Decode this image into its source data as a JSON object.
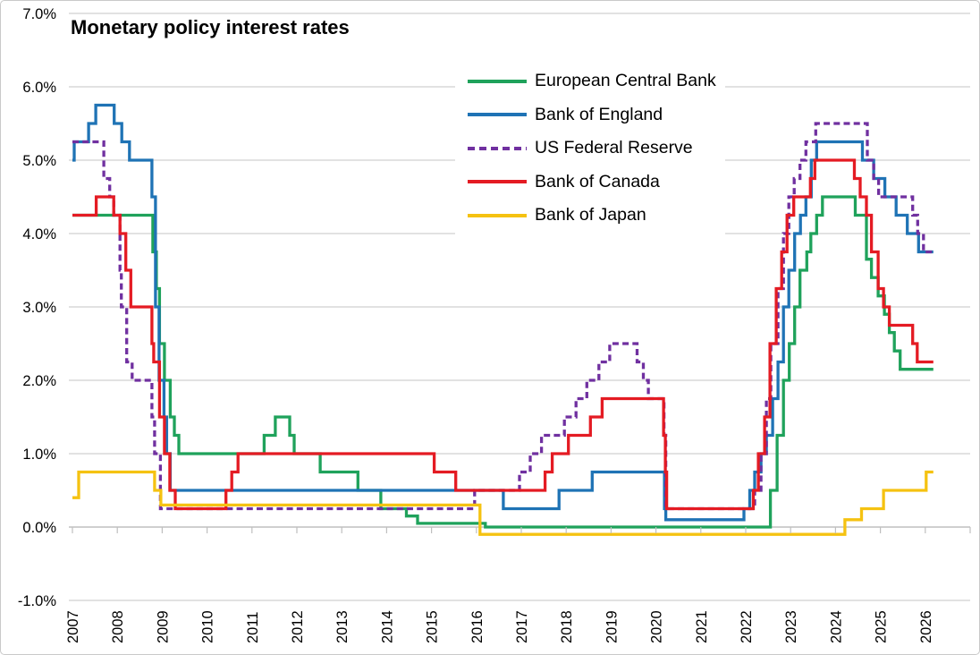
{
  "title": "Monetary policy interest rates",
  "colors": {
    "background": "#FFFFFF",
    "frame_border": "#C9C9C9",
    "gridline": "#D9D9D9",
    "axis_line": "#BFBFBF",
    "label_text": "#000000"
  },
  "y_axis": {
    "labels": [
      "7.0%",
      "6.0%",
      "5.0%",
      "4.0%",
      "3.0%",
      "2.0%",
      "1.0%",
      "0.0%",
      "-1.0%"
    ],
    "max": 7,
    "min": -1,
    "step": 1
  },
  "x_axis": {
    "years": [
      "2007",
      "2008",
      "2009",
      "2010",
      "2011",
      "2012",
      "2013",
      "2014",
      "2015",
      "2016",
      "2017",
      "2018",
      "2019",
      "2020",
      "2021",
      "2022",
      "2023",
      "2024",
      "2025",
      "2026"
    ]
  },
  "legend": [
    {
      "label": "European Central Bank",
      "color": "#1FA25B",
      "dashed": false
    },
    {
      "label": "Bank of England",
      "color": "#1F73B5",
      "dashed": false
    },
    {
      "label": "US Federal Reserve",
      "color": "#7030A0",
      "dashed": true
    },
    {
      "label": "Bank of Canada",
      "color": "#E41B23",
      "dashed": false
    },
    {
      "label": "Bank of Japan",
      "color": "#F5C211",
      "dashed": false
    }
  ],
  "chart_data": {
    "type": "line",
    "step": true,
    "title": "Monetary policy interest rates",
    "xlabel": "",
    "ylabel": "",
    "x_domain": [
      2007,
      2027.0
    ],
    "y_domain": [
      -1,
      7
    ],
    "grid": true,
    "legend_position": "upper-center-left",
    "units": "percent",
    "series": [
      {
        "name": "European Central Bank",
        "color": "#1FA25B",
        "dashed": false,
        "points": [
          [
            2007.0,
            4.25
          ],
          [
            2008.79,
            3.75
          ],
          [
            2008.87,
            3.25
          ],
          [
            2008.94,
            2.5
          ],
          [
            2009.05,
            2.0
          ],
          [
            2009.18,
            1.5
          ],
          [
            2009.27,
            1.25
          ],
          [
            2009.37,
            1.0
          ],
          [
            2011.27,
            1.25
          ],
          [
            2011.52,
            1.5
          ],
          [
            2011.84,
            1.25
          ],
          [
            2011.94,
            1.0
          ],
          [
            2012.52,
            0.75
          ],
          [
            2013.36,
            0.5
          ],
          [
            2013.87,
            0.25
          ],
          [
            2014.44,
            0.15
          ],
          [
            2014.69,
            0.05
          ],
          [
            2016.2,
            0.0
          ],
          [
            2022.55,
            0.5
          ],
          [
            2022.7,
            1.25
          ],
          [
            2022.84,
            2.0
          ],
          [
            2022.97,
            2.5
          ],
          [
            2023.09,
            3.0
          ],
          [
            2023.21,
            3.5
          ],
          [
            2023.36,
            3.75
          ],
          [
            2023.45,
            4.0
          ],
          [
            2023.58,
            4.25
          ],
          [
            2023.71,
            4.5
          ],
          [
            2024.44,
            4.25
          ],
          [
            2024.69,
            3.65
          ],
          [
            2024.8,
            3.4
          ],
          [
            2024.95,
            3.15
          ],
          [
            2025.09,
            2.9
          ],
          [
            2025.2,
            2.65
          ],
          [
            2025.31,
            2.4
          ],
          [
            2025.44,
            2.15
          ],
          [
            2026.18,
            2.15
          ]
        ]
      },
      {
        "name": "Bank of England",
        "color": "#1F73B5",
        "dashed": false,
        "points": [
          [
            2007.0,
            5.0
          ],
          [
            2007.04,
            5.25
          ],
          [
            2007.36,
            5.5
          ],
          [
            2007.52,
            5.75
          ],
          [
            2007.93,
            5.5
          ],
          [
            2008.1,
            5.25
          ],
          [
            2008.27,
            5.0
          ],
          [
            2008.77,
            4.5
          ],
          [
            2008.85,
            3.0
          ],
          [
            2008.93,
            2.0
          ],
          [
            2009.04,
            1.5
          ],
          [
            2009.1,
            1.0
          ],
          [
            2009.18,
            0.5
          ],
          [
            2016.6,
            0.25
          ],
          [
            2017.84,
            0.5
          ],
          [
            2018.58,
            0.75
          ],
          [
            2020.19,
            0.25
          ],
          [
            2020.22,
            0.1
          ],
          [
            2021.96,
            0.25
          ],
          [
            2022.09,
            0.5
          ],
          [
            2022.2,
            0.75
          ],
          [
            2022.34,
            1.0
          ],
          [
            2022.46,
            1.25
          ],
          [
            2022.6,
            1.75
          ],
          [
            2022.72,
            2.25
          ],
          [
            2022.84,
            3.0
          ],
          [
            2022.96,
            3.5
          ],
          [
            2023.09,
            4.0
          ],
          [
            2023.22,
            4.25
          ],
          [
            2023.34,
            4.5
          ],
          [
            2023.46,
            5.0
          ],
          [
            2023.58,
            5.25
          ],
          [
            2024.6,
            5.0
          ],
          [
            2024.85,
            4.75
          ],
          [
            2025.1,
            4.5
          ],
          [
            2025.35,
            4.25
          ],
          [
            2025.6,
            4.0
          ],
          [
            2025.85,
            3.75
          ],
          [
            2026.18,
            3.75
          ]
        ]
      },
      {
        "name": "US Federal Reserve",
        "color": "#7030A0",
        "dashed": true,
        "points": [
          [
            2007.0,
            5.25
          ],
          [
            2007.7,
            4.75
          ],
          [
            2007.83,
            4.5
          ],
          [
            2007.92,
            4.25
          ],
          [
            2008.06,
            3.5
          ],
          [
            2008.09,
            3.0
          ],
          [
            2008.21,
            2.25
          ],
          [
            2008.33,
            2.0
          ],
          [
            2008.77,
            1.5
          ],
          [
            2008.83,
            1.0
          ],
          [
            2008.96,
            0.25
          ],
          [
            2015.96,
            0.5
          ],
          [
            2016.96,
            0.75
          ],
          [
            2017.2,
            1.0
          ],
          [
            2017.45,
            1.25
          ],
          [
            2017.96,
            1.5
          ],
          [
            2018.22,
            1.75
          ],
          [
            2018.46,
            2.0
          ],
          [
            2018.73,
            2.25
          ],
          [
            2018.97,
            2.5
          ],
          [
            2019.58,
            2.25
          ],
          [
            2019.72,
            2.0
          ],
          [
            2019.83,
            1.75
          ],
          [
            2020.18,
            1.25
          ],
          [
            2020.22,
            0.25
          ],
          [
            2022.2,
            0.5
          ],
          [
            2022.34,
            1.0
          ],
          [
            2022.46,
            1.75
          ],
          [
            2022.56,
            2.5
          ],
          [
            2022.72,
            3.25
          ],
          [
            2022.84,
            4.0
          ],
          [
            2022.96,
            4.5
          ],
          [
            2023.08,
            4.75
          ],
          [
            2023.21,
            5.0
          ],
          [
            2023.34,
            5.25
          ],
          [
            2023.56,
            5.5
          ],
          [
            2024.71,
            5.0
          ],
          [
            2024.85,
            4.75
          ],
          [
            2024.96,
            4.5
          ],
          [
            2025.72,
            4.25
          ],
          [
            2025.83,
            4.0
          ],
          [
            2025.96,
            3.75
          ],
          [
            2026.18,
            3.75
          ]
        ]
      },
      {
        "name": "Bank of Canada",
        "color": "#E41B23",
        "dashed": false,
        "points": [
          [
            2007.0,
            4.25
          ],
          [
            2007.53,
            4.5
          ],
          [
            2007.92,
            4.25
          ],
          [
            2008.06,
            4.0
          ],
          [
            2008.19,
            3.5
          ],
          [
            2008.3,
            3.0
          ],
          [
            2008.77,
            2.5
          ],
          [
            2008.81,
            2.25
          ],
          [
            2008.94,
            1.5
          ],
          [
            2009.05,
            1.0
          ],
          [
            2009.17,
            0.5
          ],
          [
            2009.29,
            0.25
          ],
          [
            2010.42,
            0.5
          ],
          [
            2010.55,
            0.75
          ],
          [
            2010.69,
            1.0
          ],
          [
            2015.06,
            0.75
          ],
          [
            2015.54,
            0.5
          ],
          [
            2017.53,
            0.75
          ],
          [
            2017.69,
            1.0
          ],
          [
            2018.05,
            1.25
          ],
          [
            2018.54,
            1.5
          ],
          [
            2018.8,
            1.75
          ],
          [
            2020.17,
            1.25
          ],
          [
            2020.21,
            0.75
          ],
          [
            2020.24,
            0.25
          ],
          [
            2022.17,
            0.5
          ],
          [
            2022.28,
            1.0
          ],
          [
            2022.42,
            1.5
          ],
          [
            2022.54,
            2.5
          ],
          [
            2022.68,
            3.25
          ],
          [
            2022.8,
            3.75
          ],
          [
            2022.92,
            4.25
          ],
          [
            2023.07,
            4.5
          ],
          [
            2023.44,
            4.75
          ],
          [
            2023.54,
            5.0
          ],
          [
            2024.42,
            4.75
          ],
          [
            2024.55,
            4.5
          ],
          [
            2024.69,
            4.25
          ],
          [
            2024.8,
            3.75
          ],
          [
            2024.95,
            3.25
          ],
          [
            2025.07,
            3.0
          ],
          [
            2025.2,
            2.75
          ],
          [
            2025.72,
            2.5
          ],
          [
            2025.82,
            2.25
          ],
          [
            2026.18,
            2.25
          ]
        ]
      },
      {
        "name": "Bank of Japan",
        "color": "#F5C211",
        "dashed": false,
        "points": [
          [
            2007.0,
            0.4
          ],
          [
            2007.14,
            0.75
          ],
          [
            2008.83,
            0.5
          ],
          [
            2008.97,
            0.3
          ],
          [
            2016.08,
            -0.1
          ],
          [
            2024.21,
            0.1
          ],
          [
            2024.58,
            0.25
          ],
          [
            2025.07,
            0.5
          ],
          [
            2026.02,
            0.75
          ],
          [
            2026.18,
            0.75
          ]
        ]
      }
    ]
  }
}
